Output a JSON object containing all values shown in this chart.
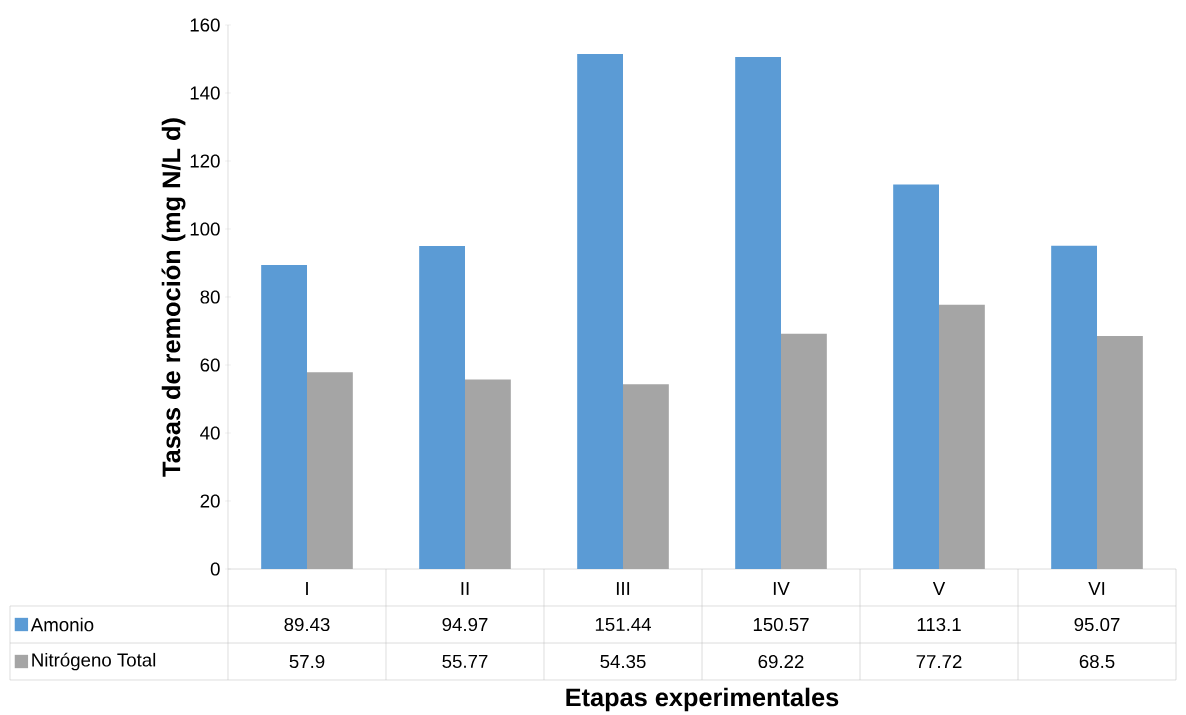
{
  "chart_data": {
    "type": "bar",
    "categories": [
      "I",
      "II",
      "III",
      "IV",
      "V",
      "VI"
    ],
    "series": [
      {
        "name": "Amonio",
        "color": "#5b9bd5",
        "values": [
          89.43,
          94.97,
          151.44,
          150.57,
          113.1,
          95.07
        ]
      },
      {
        "name": "Nitrógeno Total",
        "color": "#a5a5a5",
        "values": [
          57.9,
          55.77,
          54.35,
          69.22,
          77.72,
          68.5
        ]
      }
    ],
    "ylim": [
      0,
      160
    ],
    "yticks": [
      0,
      20,
      40,
      60,
      80,
      100,
      120,
      140,
      160
    ],
    "xlabel": "Etapas experimentales",
    "ylabel": "Tasas de remoción (mg N/L d)",
    "data_labels": true,
    "legend": "bottom"
  }
}
